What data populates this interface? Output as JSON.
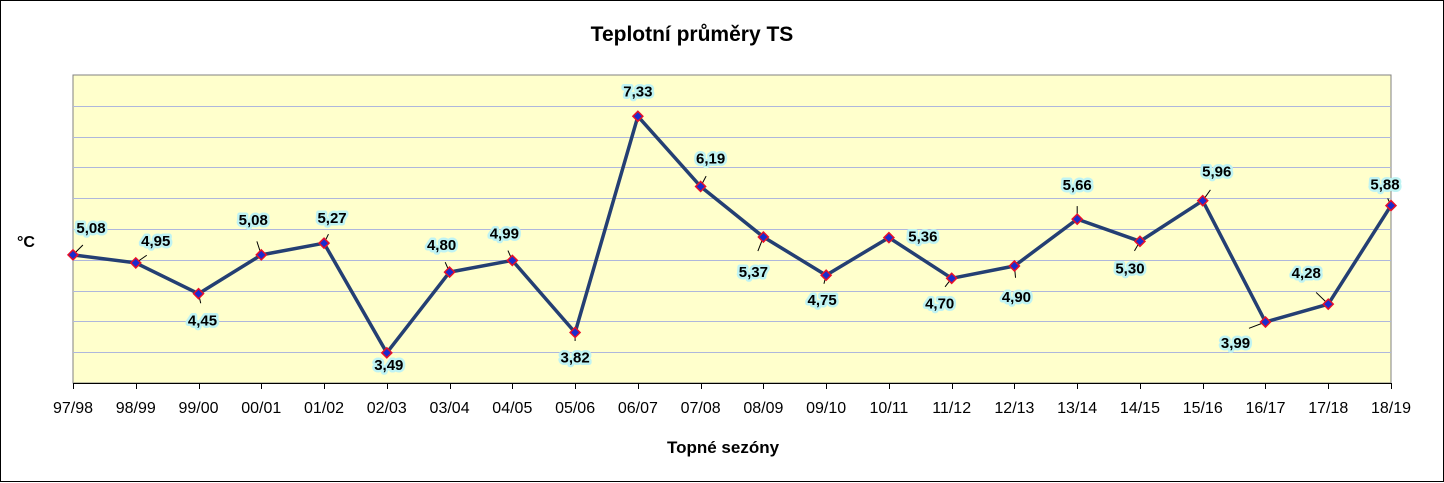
{
  "chart_data": {
    "type": "line",
    "title": "Teplotní průměry  TS",
    "xlabel": "Topné sezóny",
    "ylabel": "°C",
    "categories": [
      "97/98",
      "98/99",
      "99/00",
      "00/01",
      "01/02",
      "02/03",
      "03/04",
      "04/05",
      "05/06",
      "06/07",
      "07/08",
      "08/09",
      "09/10",
      "10/11",
      "11/12",
      "12/13",
      "13/14",
      "14/15",
      "15/16",
      "16/17",
      "17/18",
      "18/19"
    ],
    "series": [
      {
        "values": [
          5.08,
          4.95,
          4.45,
          5.08,
          5.27,
          3.49,
          4.8,
          4.99,
          3.82,
          7.33,
          6.19,
          5.37,
          4.75,
          5.36,
          4.7,
          4.9,
          5.66,
          5.3,
          5.96,
          3.99,
          4.28,
          5.88
        ],
        "value_labels": [
          "5,08",
          "4,95",
          "4,45",
          "5,08",
          "5,27",
          "3,49",
          "4,80",
          "4,99",
          "3,82",
          "7,33",
          "6,19",
          "5,37",
          "4,75",
          "5,36",
          "4,70",
          "4,90",
          "5,66",
          "5,30",
          "5,96",
          "3,99",
          "4,28",
          "5,88"
        ]
      }
    ],
    "ylim": [
      3.0,
      8.0
    ],
    "grid": true,
    "legend": "none",
    "colors": {
      "plot_background": "#ffffcc",
      "line": "#243f73",
      "marker_fill": "#1a2ccf",
      "marker_edge": "#e8102a",
      "gridline": "#aeb7dc",
      "label_glow": "#bff3f3"
    }
  }
}
